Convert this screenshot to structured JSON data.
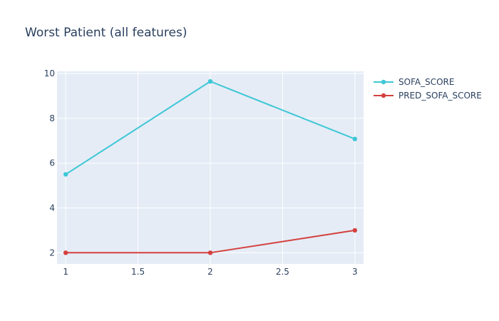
{
  "chart_data": {
    "type": "line",
    "title": "Worst Patient (all features)",
    "xlabel": "",
    "ylabel": "",
    "x": [
      1,
      2,
      3
    ],
    "xlim": [
      0.94,
      3.06
    ],
    "ylim": [
      1.5,
      10.1
    ],
    "xticks": [
      1,
      1.5,
      2,
      2.5,
      3
    ],
    "xtick_labels": [
      "1",
      "1.5",
      "2",
      "2.5",
      "3"
    ],
    "yticks": [
      2,
      4,
      6,
      8,
      10
    ],
    "ytick_labels": [
      "2",
      "4",
      "6",
      "8",
      "10"
    ],
    "grid": true,
    "legend_position": "top-right, outside plot",
    "plot_bg": "#e5ecf6",
    "series": [
      {
        "name": "SOFA_SCORE",
        "values": [
          5.5,
          9.65,
          7.08
        ],
        "color": "#3ec7d6"
      },
      {
        "name": "PRED_SOFA_SCORE",
        "values": [
          2,
          2,
          3
        ],
        "color": "#d4403f"
      }
    ]
  }
}
